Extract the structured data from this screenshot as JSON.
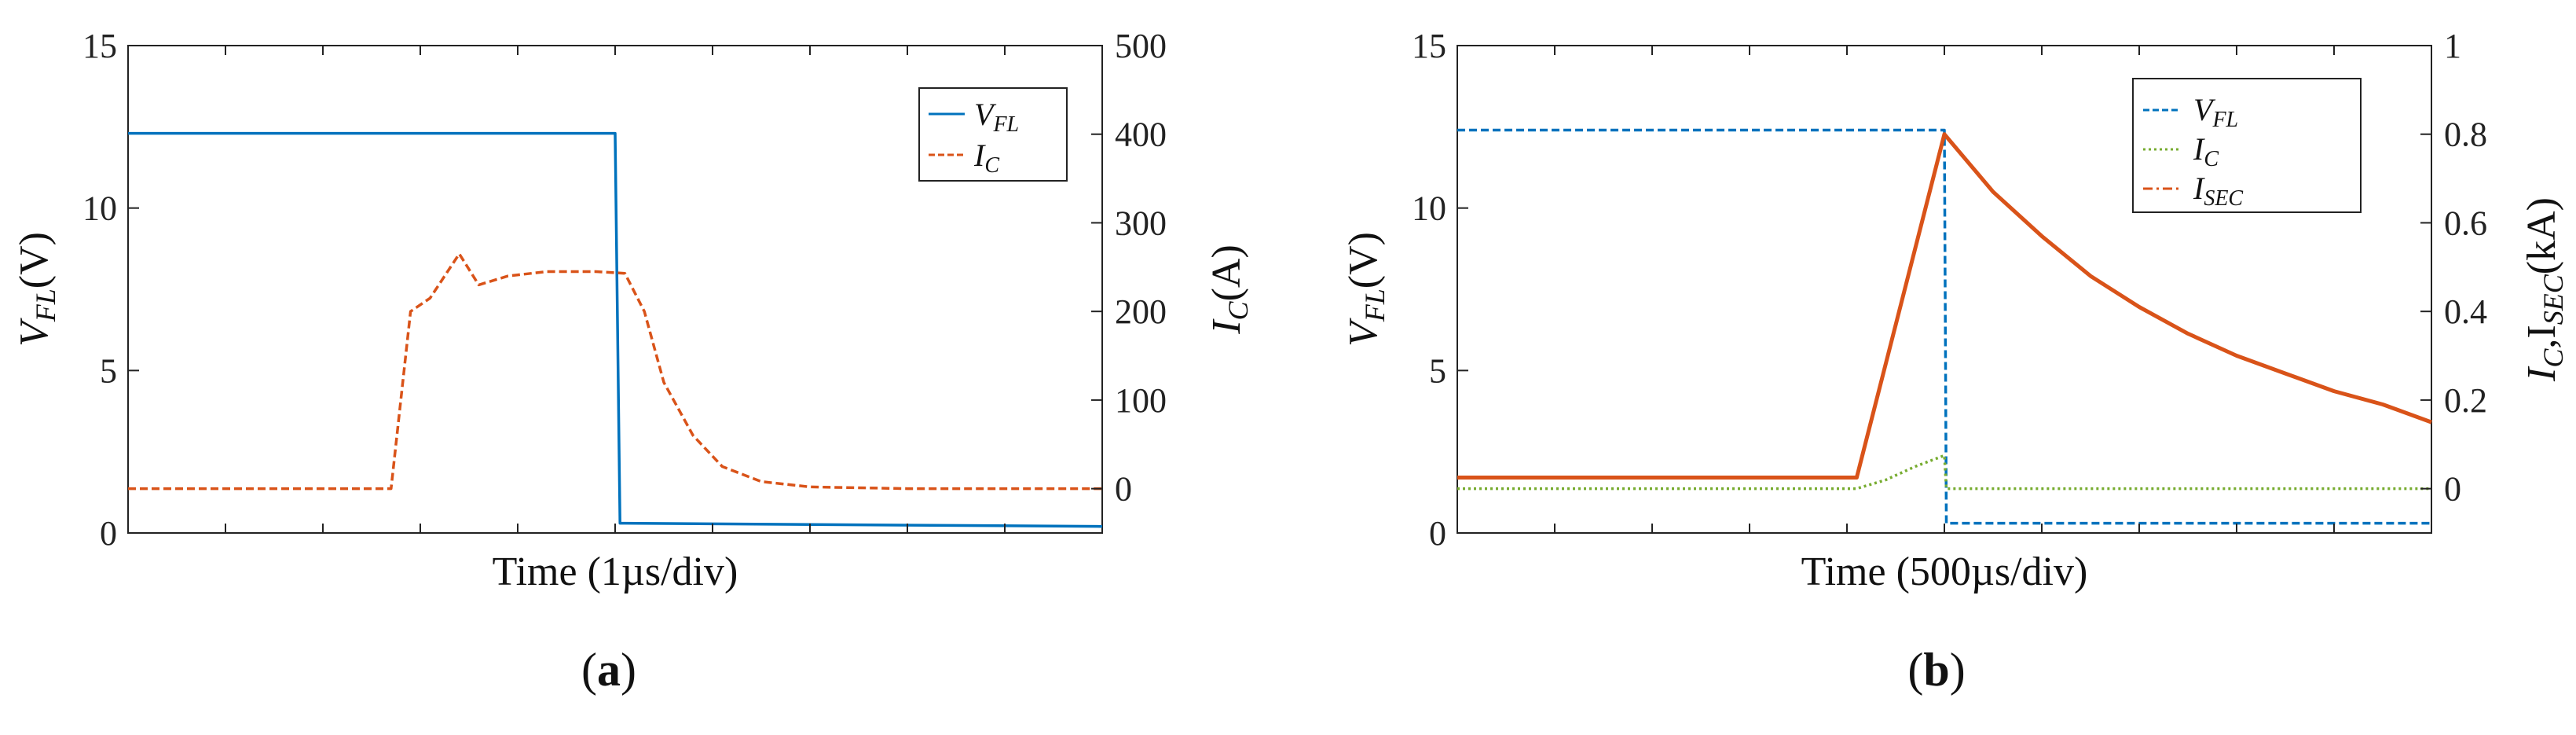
{
  "chart_data": [
    {
      "id": "a",
      "type": "line",
      "panel_label": "a",
      "xlabel": "Time (1µs/div)",
      "ylabel_left": "V",
      "ylabel_left_sub": "FL",
      "ylabel_left_unit": "(V)",
      "ylabel_right": "I",
      "ylabel_right_sub": "C",
      "ylabel_right_unit": "(A)",
      "x_range": [
        0,
        10
      ],
      "y_left": {
        "range": [
          0,
          15
        ],
        "ticks": [
          0,
          5,
          10,
          15
        ],
        "tick_labels": [
          "0",
          "5",
          "10",
          "15"
        ]
      },
      "y_right": {
        "range": [
          -50,
          500
        ],
        "ticks": [
          0,
          100,
          200,
          300,
          400,
          500
        ],
        "tick_labels": [
          "0",
          "100",
          "200",
          "300",
          "400",
          "500"
        ]
      },
      "legend_position": "top-right",
      "series": [
        {
          "name": "V",
          "name_sub": "FL",
          "axis": "left",
          "color": "#0072BD",
          "style": "solid",
          "x": [
            0,
            5.0,
            5.0,
            5.05,
            5.1,
            10
          ],
          "y": [
            12.3,
            12.3,
            12.3,
            0.3,
            0.3,
            0.2
          ]
        },
        {
          "name": "I",
          "name_sub": "C",
          "axis": "right",
          "color": "#D95319",
          "style": "dashed",
          "x": [
            0,
            2.7,
            2.9,
            3.1,
            3.4,
            3.6,
            3.9,
            4.3,
            4.8,
            5.1,
            5.3,
            5.5,
            5.8,
            6.1,
            6.5,
            7.0,
            8.0,
            10
          ],
          "y": [
            0,
            0,
            200,
            215,
            265,
            230,
            240,
            245,
            245,
            243,
            200,
            120,
            60,
            25,
            8,
            2,
            0,
            0
          ]
        }
      ]
    },
    {
      "id": "b",
      "type": "line",
      "panel_label": "b",
      "xlabel": "Time (500µs/div)",
      "ylabel_left": "V",
      "ylabel_left_sub": "FL",
      "ylabel_left_unit": "(V)",
      "ylabel_right": "I",
      "ylabel_right_sub": "C",
      "ylabel_right_mid": ",I",
      "ylabel_right_sub2": "SEC",
      "ylabel_right_unit": "(kA)",
      "x_range": [
        0,
        10
      ],
      "y_left": {
        "range": [
          0,
          15
        ],
        "ticks": [
          0,
          5,
          10,
          15
        ],
        "tick_labels": [
          "0",
          "5",
          "10",
          "15"
        ]
      },
      "y_right": {
        "range": [
          -0.1,
          1.0
        ],
        "ticks": [
          0,
          0.2,
          0.4,
          0.6,
          0.8,
          1.0
        ],
        "tick_labels": [
          "0",
          "0.2",
          "0.4",
          "0.6",
          "0.8",
          "1"
        ]
      },
      "legend_position": "top-right",
      "series": [
        {
          "name": "V",
          "name_sub": "FL",
          "axis": "left",
          "color": "#0072BD",
          "style": "dashed",
          "x": [
            0,
            5.0,
            5.0,
            5.02,
            10
          ],
          "y": [
            12.4,
            12.4,
            12.4,
            0.3,
            0.3
          ]
        },
        {
          "name": "I",
          "name_sub": "C",
          "axis": "right",
          "color": "#77AC30",
          "style": "dotted",
          "x": [
            0,
            4.1,
            4.4,
            4.7,
            5.0,
            5.02,
            10
          ],
          "y": [
            0,
            0,
            0.02,
            0.05,
            0.075,
            0,
            0
          ]
        },
        {
          "name": "I",
          "name_sub": "SEC",
          "axis": "right",
          "color": "#D95319",
          "style": "solid",
          "x": [
            0,
            4.1,
            5.0,
            5.5,
            6.0,
            6.5,
            7.0,
            7.5,
            8.0,
            8.5,
            9.0,
            9.5,
            10.0
          ],
          "y": [
            0.025,
            0.025,
            0.8,
            0.67,
            0.57,
            0.48,
            0.41,
            0.35,
            0.3,
            0.26,
            0.22,
            0.19,
            0.15
          ]
        }
      ]
    }
  ]
}
